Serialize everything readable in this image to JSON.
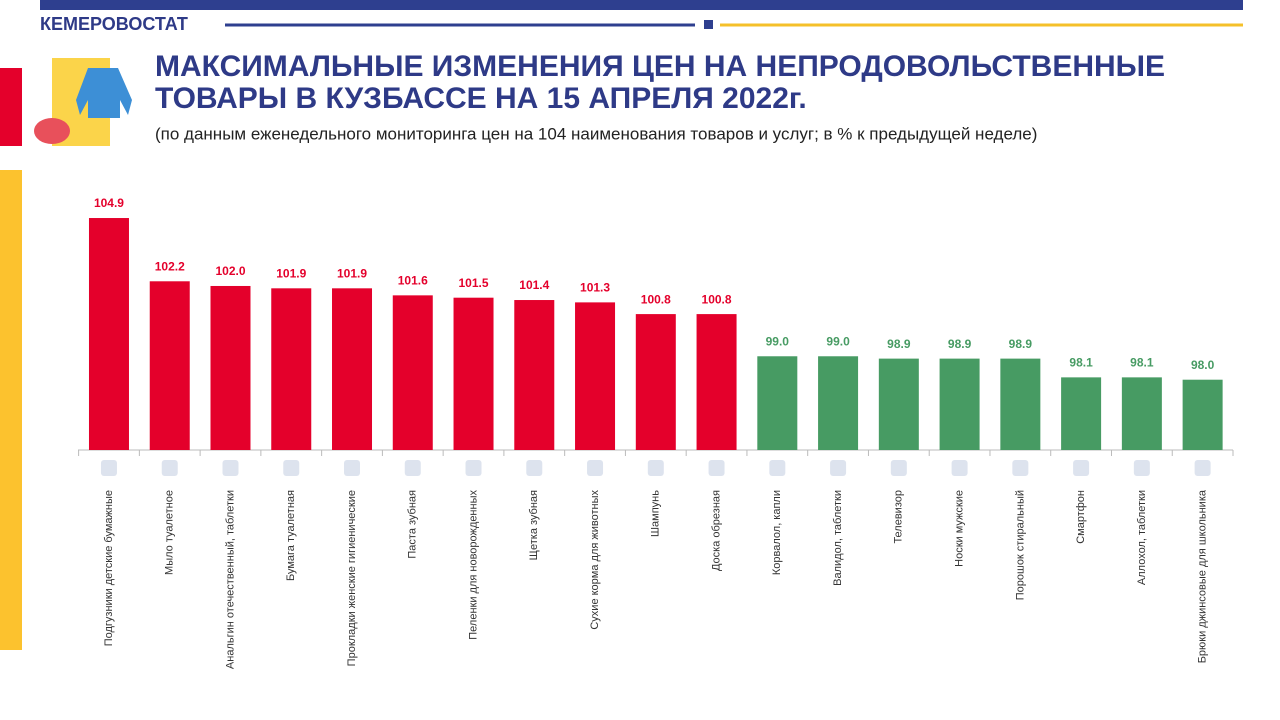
{
  "chart_data": {
    "type": "bar",
    "brand": "КЕМЕРОВОСТАТ",
    "title": [
      "МАКСИМАЛЬНЫЕ ИЗМЕНЕНИЯ ЦЕН НА НЕПРОДОВОЛЬСТВЕННЫЕ",
      "ТОВАРЫ В КУЗБАССЕ НА 15 АПРЕЛЯ 2022г."
    ],
    "subtitle": "(по данным еженедельного мониторинга цен на 104 наименования товаров и услуг; в % к предыдущей неделе)",
    "categories": [
      "Подгузники детские бумажные",
      "Мыло туалетное",
      "Анальгин отечественный, таблетки",
      "Бумага туалетная",
      "Прокладки женские гигиенические",
      "Паста зубная",
      "Пеленки для новорожденных",
      "Щетка зубная",
      "Сухие корма для животных",
      "Шампунь",
      "Доска обрезная",
      "Корвалол, капли",
      "Валидол, таблетки",
      "Телевизор",
      "Носки мужские",
      "Порошок стиральный",
      "Смартфон",
      "Аллохол, таблетки",
      "Брюки джинсовые для школьника"
    ],
    "values": [
      104.9,
      102.2,
      102,
      101.9,
      101.9,
      101.6,
      101.5,
      101.4,
      101.3,
      100.8,
      100.8,
      99,
      99,
      98.9,
      98.9,
      98.9,
      98.1,
      98.1,
      98
    ],
    "value_labels": [
      "104.9",
      "102.2",
      "102.0",
      "101.9",
      "101.9",
      "101.6",
      "101.5",
      "101.4",
      "101.3",
      "100.8",
      "100.8",
      "99.0",
      "99.0",
      "98.9",
      "98.9",
      "98.9",
      "98.1",
      "98.1",
      "98.0"
    ],
    "colors": [
      "#e4002b",
      "#e4002b",
      "#e4002b",
      "#e4002b",
      "#e4002b",
      "#e4002b",
      "#e4002b",
      "#e4002b",
      "#e4002b",
      "#e4002b",
      "#e4002b",
      "#479b63",
      "#479b63",
      "#479b63",
      "#479b63",
      "#479b63",
      "#479b63",
      "#479b63",
      "#479b63"
    ],
    "ylim": [
      95,
      105
    ],
    "grid": false
  }
}
